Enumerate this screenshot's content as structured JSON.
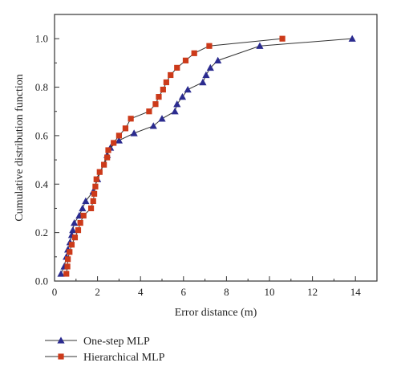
{
  "chart_data": {
    "type": "line",
    "xlabel": "Error distance (m)",
    "ylabel": "Cumulative distribution function",
    "xlim": [
      0,
      15
    ],
    "ylim": [
      0,
      1.1
    ],
    "x_ticks": [
      "0",
      "2",
      "4",
      "6",
      "8",
      "10",
      "12",
      "14"
    ],
    "y_ticks": [
      "0.0",
      "0.2",
      "0.4",
      "0.6",
      "0.8",
      "1.0"
    ],
    "grid": false,
    "legend_position": "bottom-left, below plot",
    "series": [
      {
        "name": "One-step MLP",
        "marker": "triangle",
        "color": "#2b2b8f",
        "x": [
          0.3,
          0.45,
          0.55,
          0.62,
          0.72,
          0.8,
          0.85,
          0.92,
          1.15,
          1.3,
          1.45,
          1.8,
          2.0,
          2.45,
          2.6,
          3.0,
          3.7,
          4.6,
          5.0,
          5.6,
          5.7,
          5.95,
          6.2,
          6.9,
          7.05,
          7.25,
          7.6,
          9.55,
          13.85
        ],
        "y": [
          0.03,
          0.06,
          0.1,
          0.13,
          0.16,
          0.19,
          0.21,
          0.24,
          0.27,
          0.3,
          0.33,
          0.37,
          0.42,
          0.52,
          0.55,
          0.58,
          0.61,
          0.64,
          0.67,
          0.7,
          0.73,
          0.76,
          0.79,
          0.82,
          0.85,
          0.88,
          0.91,
          0.97,
          1.0
        ]
      },
      {
        "name": "Hierarchical MLP",
        "marker": "square",
        "color": "#cc3a1a",
        "x": [
          0.55,
          0.6,
          0.62,
          0.7,
          0.8,
          0.95,
          1.1,
          1.2,
          1.35,
          1.7,
          1.8,
          1.85,
          1.9,
          1.95,
          2.1,
          2.3,
          2.45,
          2.5,
          2.75,
          3.0,
          3.3,
          3.55,
          4.4,
          4.7,
          4.85,
          5.05,
          5.2,
          5.4,
          5.7,
          6.1,
          6.5,
          7.2,
          10.6
        ],
        "y": [
          0.03,
          0.06,
          0.09,
          0.12,
          0.15,
          0.18,
          0.21,
          0.24,
          0.27,
          0.3,
          0.33,
          0.36,
          0.39,
          0.42,
          0.45,
          0.48,
          0.51,
          0.54,
          0.57,
          0.6,
          0.63,
          0.67,
          0.7,
          0.73,
          0.76,
          0.79,
          0.82,
          0.85,
          0.88,
          0.91,
          0.94,
          0.97,
          1.0
        ]
      }
    ]
  }
}
